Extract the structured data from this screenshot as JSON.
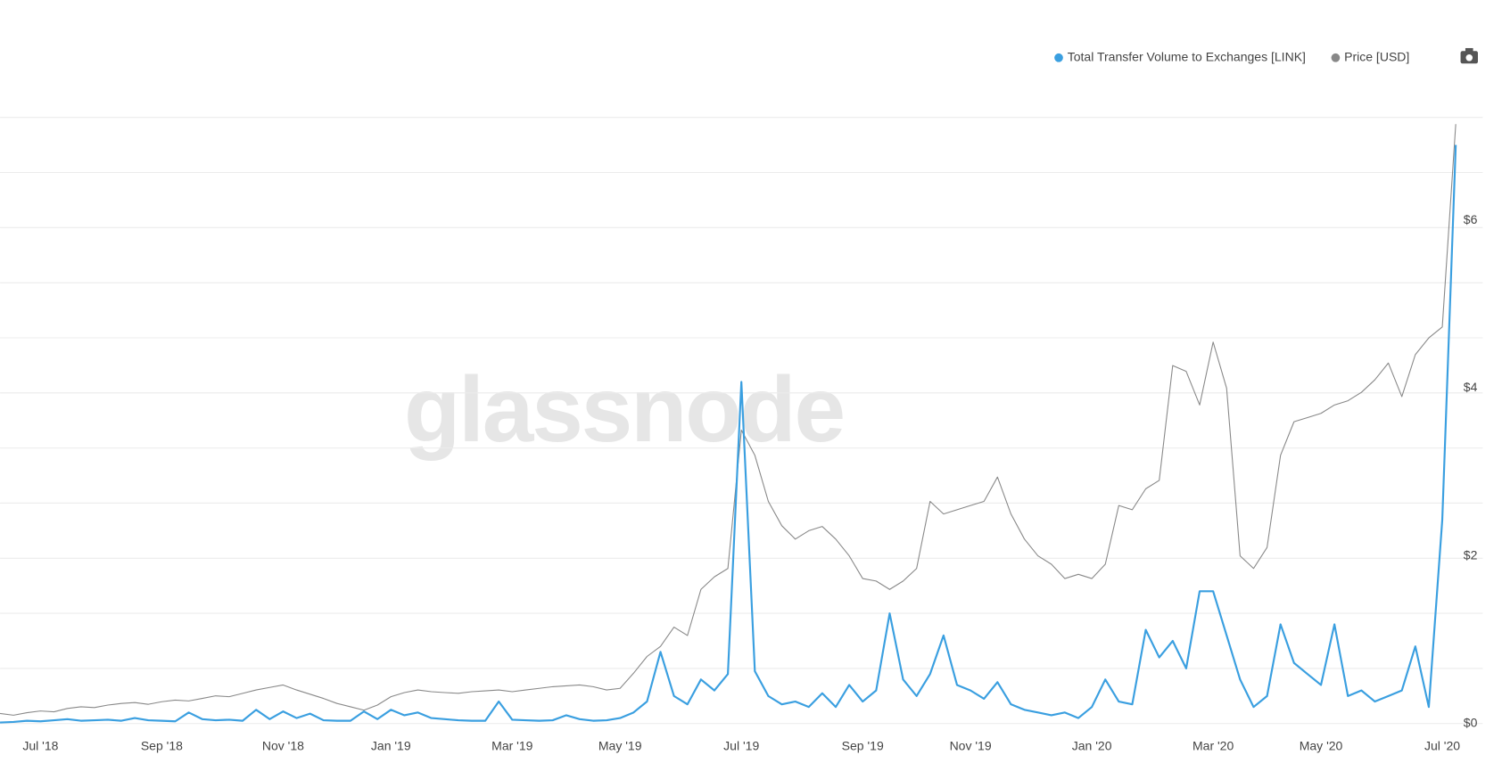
{
  "chart_data": {
    "type": "line",
    "watermark": "glassnode",
    "categories": [
      null,
      null,
      null,
      "Jul '18",
      null,
      null,
      null,
      null,
      null,
      null,
      null,
      null,
      "Sep '18",
      null,
      null,
      null,
      null,
      null,
      null,
      null,
      null,
      "Nov '18",
      null,
      null,
      null,
      null,
      null,
      null,
      null,
      "Jan '19",
      null,
      null,
      null,
      null,
      null,
      null,
      null,
      null,
      "Mar '19",
      null,
      null,
      null,
      null,
      null,
      null,
      null,
      "May '19",
      null,
      null,
      null,
      null,
      null,
      null,
      null,
      null,
      "Jul '19",
      null,
      null,
      null,
      null,
      null,
      null,
      null,
      null,
      "Sep '19",
      null,
      null,
      null,
      null,
      null,
      null,
      null,
      "Nov '19",
      null,
      null,
      null,
      null,
      null,
      null,
      null,
      null,
      "Jan '20",
      null,
      null,
      null,
      null,
      null,
      null,
      null,
      null,
      "Mar '20",
      null,
      null,
      null,
      null,
      null,
      null,
      null,
      "May '20",
      null,
      null,
      null,
      null,
      null,
      null,
      null,
      null,
      "Jul '20",
      null
    ],
    "series": [
      {
        "name": "Total Transfer Volume to Exchanges [LINK]",
        "color": "#3a9fe0",
        "values": [
          0.02,
          0.03,
          0.05,
          0.04,
          0.06,
          0.08,
          0.05,
          0.06,
          0.07,
          0.05,
          0.1,
          0.06,
          0.05,
          0.04,
          0.2,
          0.08,
          0.06,
          0.07,
          0.05,
          0.25,
          0.08,
          0.22,
          0.1,
          0.18,
          0.06,
          0.05,
          0.05,
          0.22,
          0.08,
          0.25,
          0.15,
          0.2,
          0.1,
          0.08,
          0.06,
          0.05,
          0.05,
          0.4,
          0.07,
          0.06,
          0.05,
          0.06,
          0.15,
          0.08,
          0.05,
          0.06,
          0.1,
          0.2,
          0.4,
          1.3,
          0.5,
          0.35,
          0.8,
          0.6,
          0.9,
          6.2,
          0.95,
          0.5,
          0.35,
          0.4,
          0.3,
          0.55,
          0.3,
          0.7,
          0.4,
          0.6,
          2.0,
          0.8,
          0.5,
          0.9,
          1.6,
          0.7,
          0.6,
          0.45,
          0.75,
          0.35,
          0.25,
          0.2,
          0.15,
          0.2,
          0.1,
          0.3,
          0.8,
          0.4,
          0.35,
          1.7,
          1.2,
          1.5,
          1.0,
          2.4,
          2.4,
          1.6,
          0.8,
          0.3,
          0.5,
          1.8,
          1.1,
          0.9,
          0.7,
          1.8,
          0.5,
          0.6,
          0.4,
          0.5,
          0.6,
          1.4,
          0.3,
          3.7,
          10.5
        ]
      },
      {
        "name": "Price [USD]",
        "color": "#888888",
        "axis": "y2",
        "values": [
          0.12,
          0.1,
          0.13,
          0.15,
          0.14,
          0.18,
          0.2,
          0.19,
          0.22,
          0.24,
          0.25,
          0.23,
          0.26,
          0.28,
          0.27,
          0.3,
          0.33,
          0.32,
          0.36,
          0.4,
          0.43,
          0.46,
          0.4,
          0.35,
          0.3,
          0.24,
          0.2,
          0.16,
          0.22,
          0.32,
          0.37,
          0.4,
          0.38,
          0.37,
          0.36,
          0.38,
          0.39,
          0.4,
          0.38,
          0.4,
          0.42,
          0.44,
          0.45,
          0.46,
          0.44,
          0.4,
          0.42,
          0.6,
          0.8,
          0.92,
          1.15,
          1.05,
          1.6,
          1.75,
          1.85,
          3.5,
          3.2,
          2.65,
          2.36,
          2.2,
          2.3,
          2.35,
          2.2,
          2.0,
          1.73,
          1.7,
          1.6,
          1.7,
          1.85,
          2.65,
          2.5,
          2.55,
          2.6,
          2.65,
          2.94,
          2.5,
          2.2,
          2.0,
          1.9,
          1.73,
          1.78,
          1.73,
          1.9,
          2.6,
          2.55,
          2.8,
          2.9,
          4.27,
          4.2,
          3.8,
          4.55,
          4.0,
          2.0,
          1.85,
          2.1,
          3.2,
          3.6,
          3.65,
          3.7,
          3.8,
          3.85,
          3.95,
          4.1,
          4.3,
          3.9,
          4.4,
          4.6,
          4.73,
          7.15
        ]
      }
    ],
    "ylim": [
      0,
      11
    ],
    "yticks": [
      0,
      1,
      2,
      3,
      4,
      5,
      6,
      7,
      8,
      9,
      10,
      11
    ],
    "y2lim": [
      0,
      7.23
    ],
    "y2ticks": [
      {
        "value": 0,
        "label": "$0"
      },
      {
        "value": 2,
        "label": "$2"
      },
      {
        "value": 4,
        "label": "$4"
      },
      {
        "value": 6,
        "label": "$6"
      }
    ],
    "grid": true,
    "legend": "top-right"
  }
}
